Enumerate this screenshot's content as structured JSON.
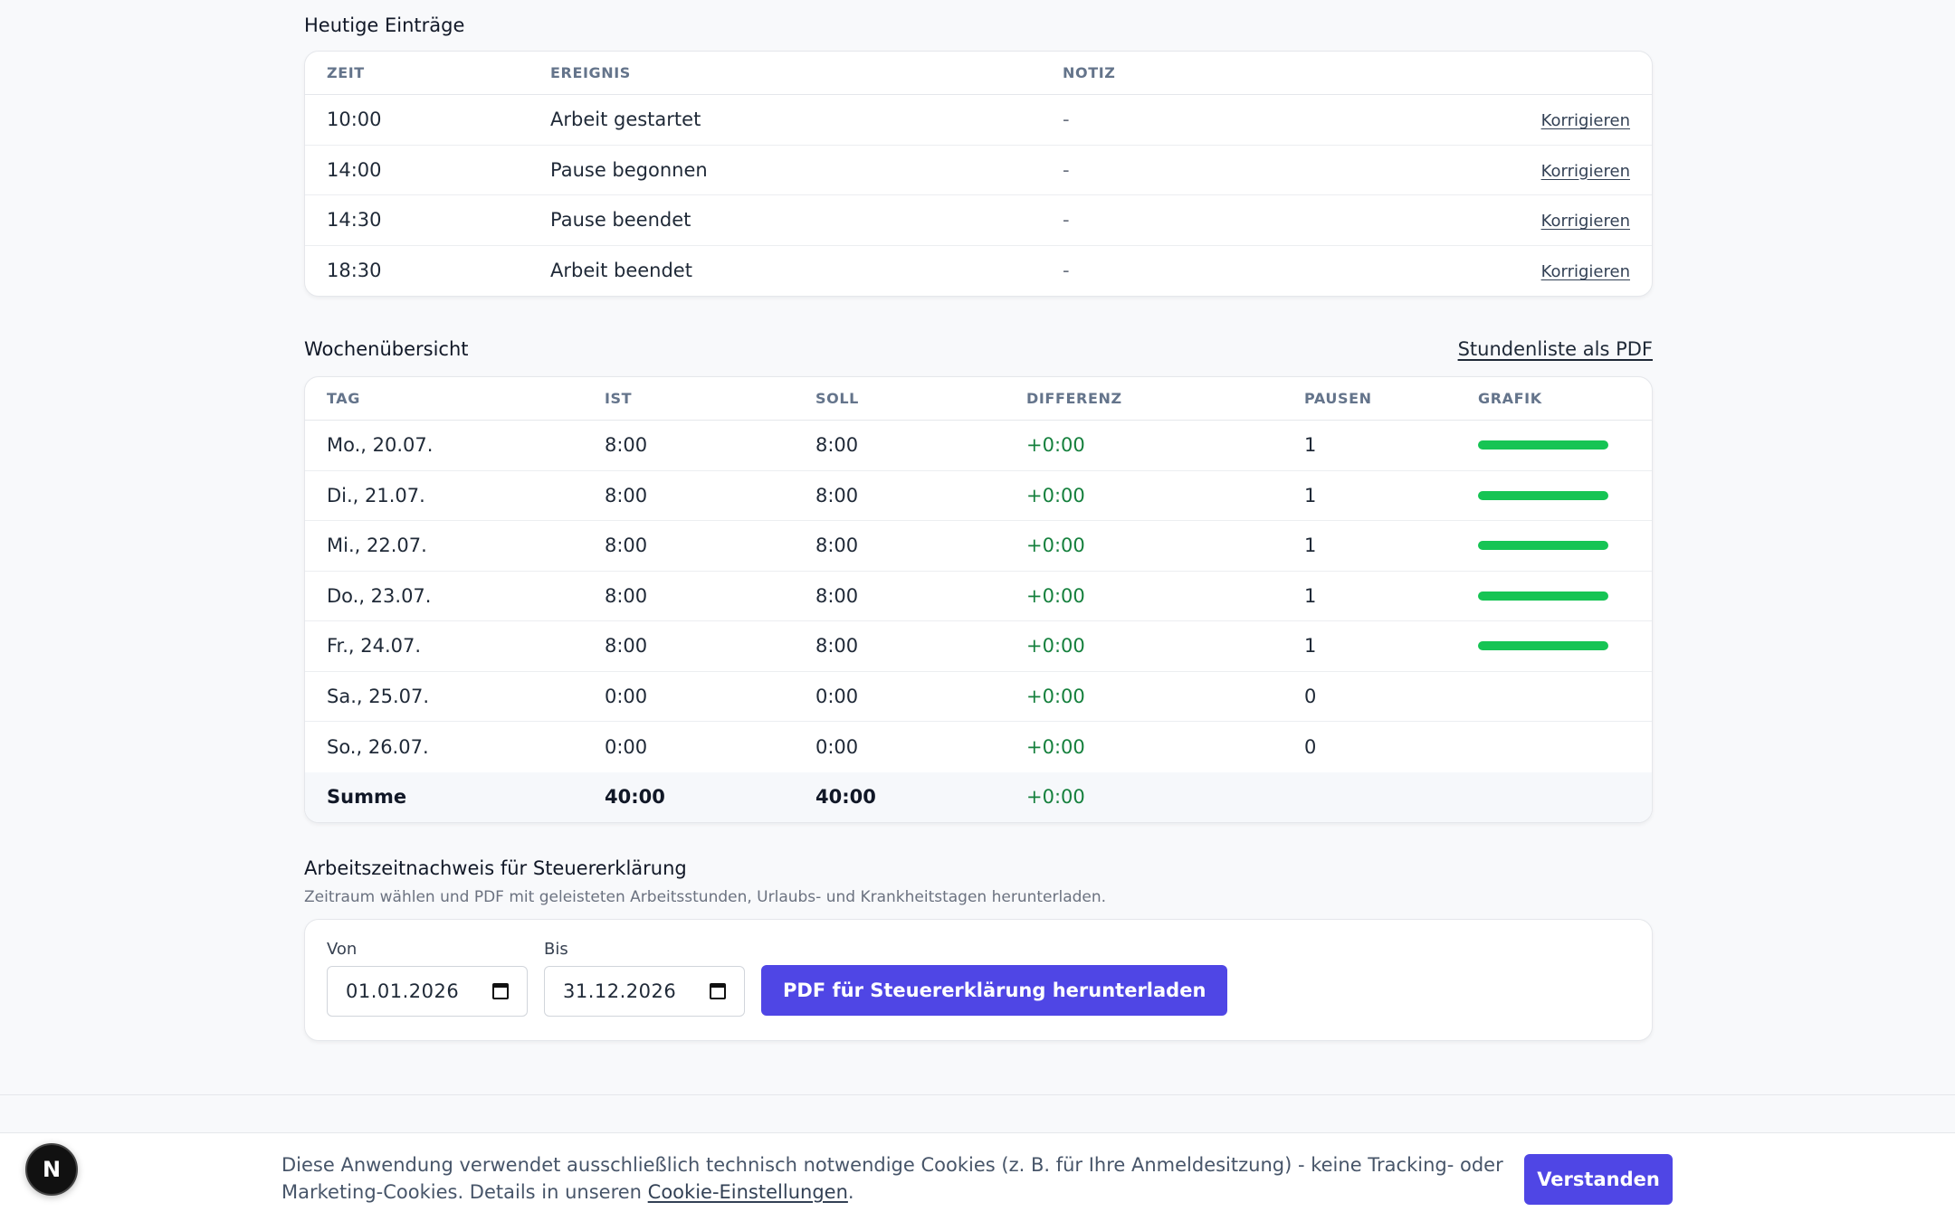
{
  "today": {
    "title": "Heutige Einträge",
    "columns": [
      "ZEIT",
      "EREIGNIS",
      "NOTIZ"
    ],
    "action_label": "Korrigieren",
    "rows": [
      {
        "time": "10:00",
        "event": "Arbeit gestartet",
        "note": "-"
      },
      {
        "time": "14:00",
        "event": "Pause begonnen",
        "note": "-"
      },
      {
        "time": "14:30",
        "event": "Pause beendet",
        "note": "-"
      },
      {
        "time": "18:30",
        "event": "Arbeit beendet",
        "note": "-"
      }
    ]
  },
  "week": {
    "title": "Wochenübersicht",
    "pdf_link": "Stundenliste als PDF",
    "columns": [
      "TAG",
      "IST",
      "SOLL",
      "DIFFERENZ",
      "PAUSEN",
      "GRAFIK"
    ],
    "bar_color": "#16c454",
    "rows": [
      {
        "day": "Mo., 20.07.",
        "ist": "8:00",
        "soll": "8:00",
        "diff": "+0:00",
        "pausen": "1",
        "progress": 1.0
      },
      {
        "day": "Di., 21.07.",
        "ist": "8:00",
        "soll": "8:00",
        "diff": "+0:00",
        "pausen": "1",
        "progress": 1.0
      },
      {
        "day": "Mi., 22.07.",
        "ist": "8:00",
        "soll": "8:00",
        "diff": "+0:00",
        "pausen": "1",
        "progress": 1.0
      },
      {
        "day": "Do., 23.07.",
        "ist": "8:00",
        "soll": "8:00",
        "diff": "+0:00",
        "pausen": "1",
        "progress": 1.0
      },
      {
        "day": "Fr., 24.07.",
        "ist": "8:00",
        "soll": "8:00",
        "diff": "+0:00",
        "pausen": "1",
        "progress": 1.0
      },
      {
        "day": "Sa., 25.07.",
        "ist": "0:00",
        "soll": "0:00",
        "diff": "+0:00",
        "pausen": "0",
        "progress": 0
      },
      {
        "day": "So., 26.07.",
        "ist": "0:00",
        "soll": "0:00",
        "diff": "+0:00",
        "pausen": "0",
        "progress": 0
      }
    ],
    "sum": {
      "label": "Summe",
      "ist": "40:00",
      "soll": "40:00",
      "diff": "+0:00"
    }
  },
  "tax": {
    "title": "Arbeitszeitnachweis für Steuererklärung",
    "subtitle": "Zeitraum wählen und PDF mit geleisteten Arbeitsstunden, Urlaubs- und Krankheitstagen herunterladen.",
    "from_label": "Von",
    "from_value": "01.01.2026",
    "to_label": "Bis",
    "to_value": "31.12.2026",
    "button": "PDF für Steuererklärung herunterladen"
  },
  "cookie": {
    "text_before": "Diese Anwendung verwendet ausschließlich technisch notwendige Cookies (z. B. für Ihre Anmeldesitzung) - keine Tracking- oder Marketing-Cookies. Details in unseren ",
    "link": "Cookie-Einstellungen",
    "text_after": ".",
    "button": "Verstanden"
  },
  "dev_badge": "N"
}
